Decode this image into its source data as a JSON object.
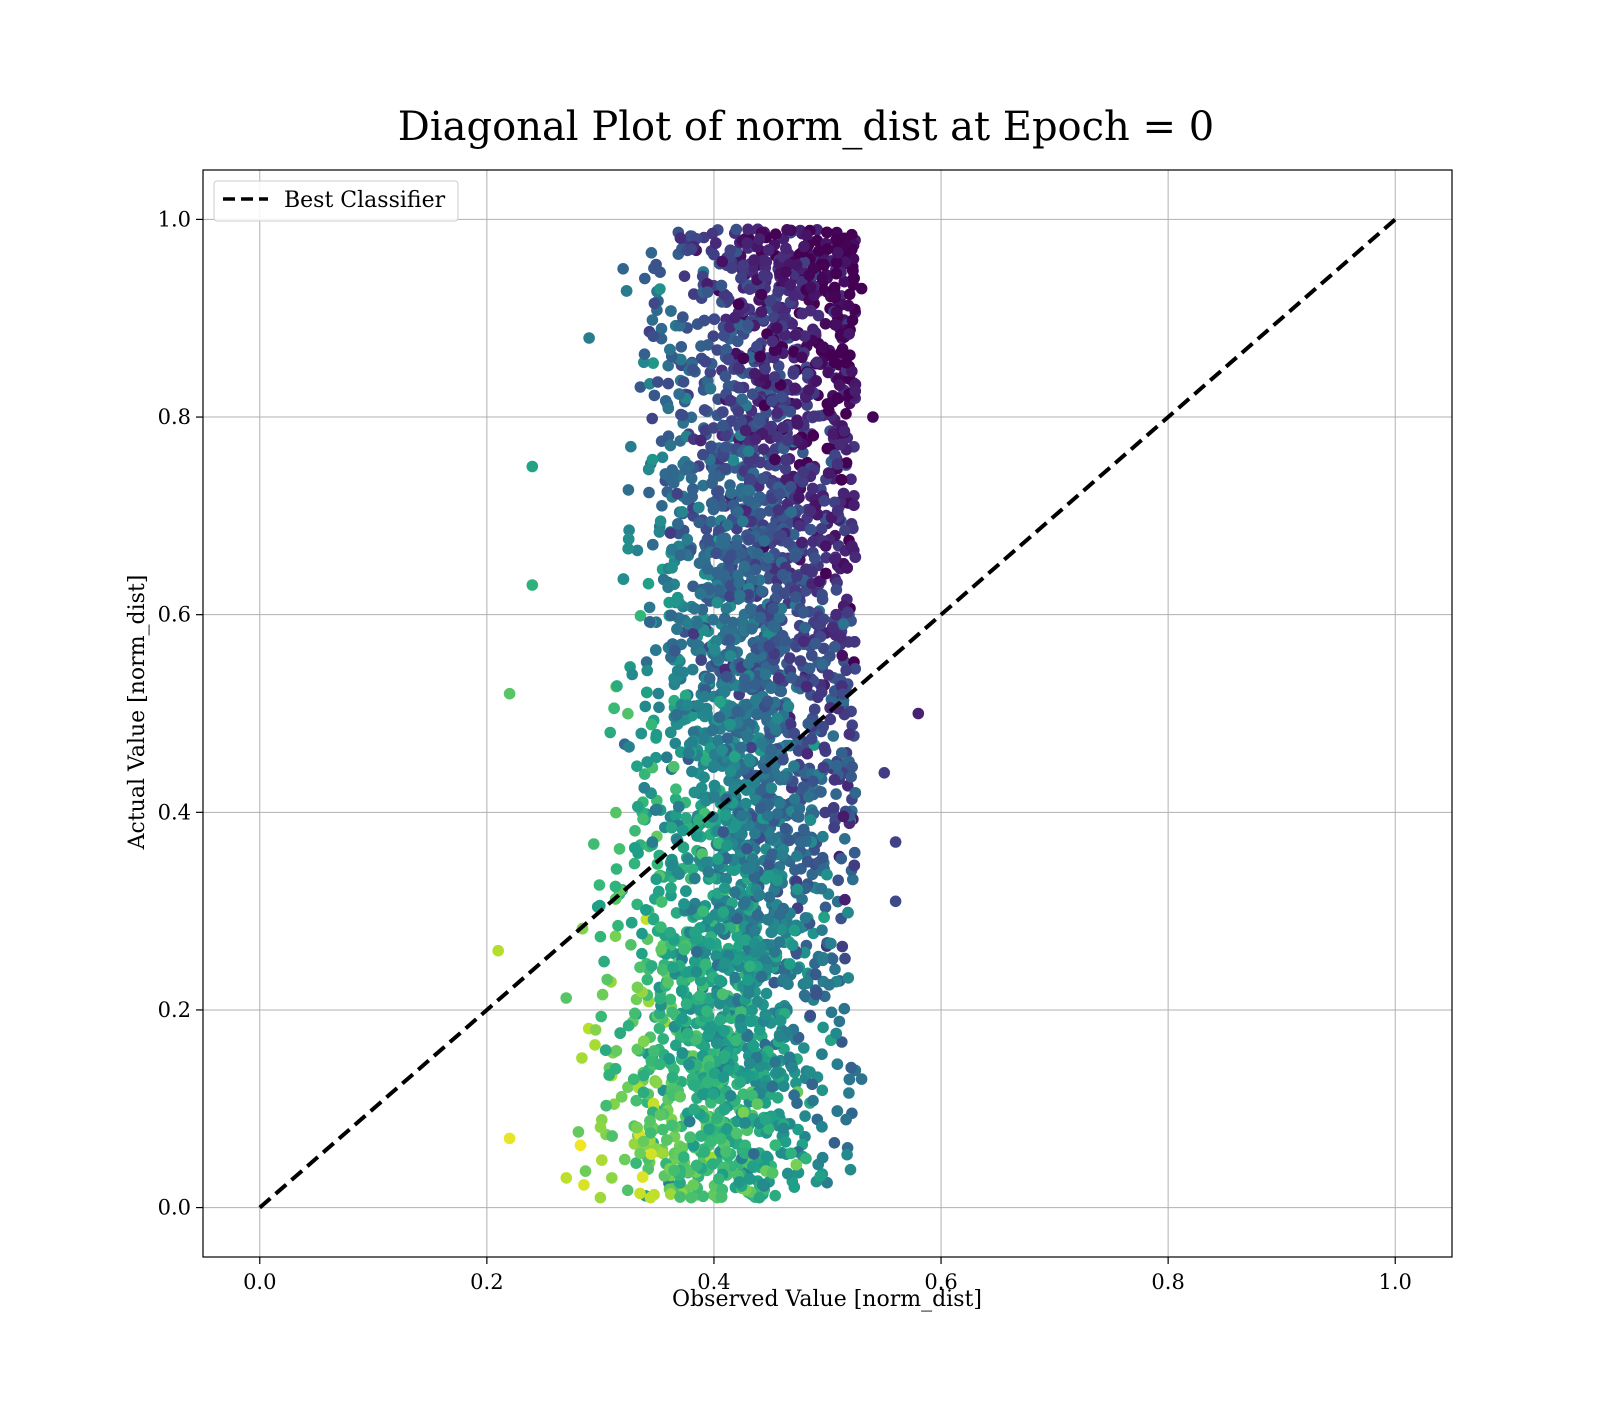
{
  "chart_data": {
    "type": "scatter",
    "title": "Diagonal Plot of norm_dist at Epoch = 0",
    "xlabel": "Observed Value [norm_dist]",
    "ylabel": "Actual Value [norm_dist]",
    "xlim": [
      -0.05,
      1.05
    ],
    "ylim": [
      -0.05,
      1.05
    ],
    "xticks": [
      "0.0",
      "0.2",
      "0.4",
      "0.6",
      "0.8",
      "1.0"
    ],
    "yticks": [
      "0.0",
      "0.2",
      "0.4",
      "0.6",
      "0.8",
      "1.0"
    ],
    "grid": true,
    "legend": {
      "placement": "top-left",
      "entries": [
        "Best Classifier"
      ]
    },
    "colormap": "viridis",
    "colors": {
      "diagonal": "#000000",
      "grid": "#b0b0b0",
      "point_dark": "#440154",
      "point_mid": "#21918c",
      "point_light": "#fde725"
    },
    "series": [
      {
        "name": "Best Classifier",
        "kind": "line",
        "style": "dashed",
        "x": [
          0.0,
          1.0
        ],
        "y": [
          0.0,
          1.0
        ]
      },
      {
        "kind": "points",
        "x_range": [
          0.21,
          0.58
        ],
        "y_range": [
          0.01,
          0.99
        ],
        "points": [
          {
            "x": 0.32,
            "y": 0.95
          },
          {
            "x": 0.43,
            "y": 0.99
          },
          {
            "x": 0.44,
            "y": 0.98
          },
          {
            "x": 0.38,
            "y": 0.97
          },
          {
            "x": 0.5,
            "y": 0.97
          },
          {
            "x": 0.53,
            "y": 0.93
          },
          {
            "x": 0.29,
            "y": 0.88
          },
          {
            "x": 0.58,
            "y": 0.5
          },
          {
            "x": 0.56,
            "y": 0.37
          },
          {
            "x": 0.56,
            "y": 0.31
          },
          {
            "x": 0.24,
            "y": 0.75
          },
          {
            "x": 0.24,
            "y": 0.63
          },
          {
            "x": 0.22,
            "y": 0.52
          },
          {
            "x": 0.21,
            "y": 0.26
          },
          {
            "x": 0.22,
            "y": 0.07
          },
          {
            "x": 0.3,
            "y": 0.01
          },
          {
            "x": 0.38,
            "y": 0.01
          },
          {
            "x": 0.44,
            "y": 0.01
          },
          {
            "x": 0.27,
            "y": 0.03
          },
          {
            "x": 0.31,
            "y": 0.03
          },
          {
            "x": 0.53,
            "y": 0.13
          },
          {
            "x": 0.55,
            "y": 0.44
          },
          {
            "x": 0.54,
            "y": 0.8
          }
        ]
      }
    ]
  }
}
